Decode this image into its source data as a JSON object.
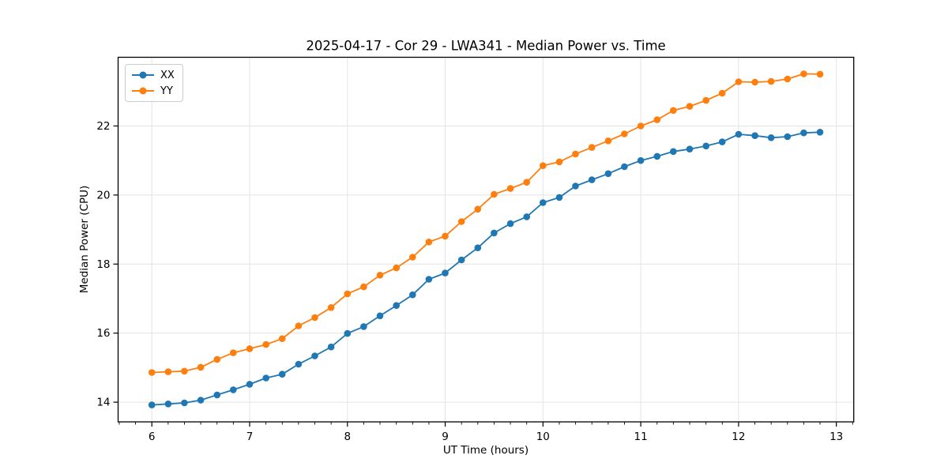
{
  "window": {
    "background": "#ffffff"
  },
  "chart_data": {
    "type": "line",
    "title": "2025-04-17 - Cor 29 - LWA341 - Median Power vs. Time",
    "xlabel": "UT Time (hours)",
    "ylabel": "Median Power (CPU)",
    "xlim": [
      5.655,
      13.178
    ],
    "ylim": [
      13.43,
      23.99
    ],
    "xticks": [
      6,
      7,
      8,
      9,
      10,
      11,
      12,
      13
    ],
    "xtick_labels": [
      "6",
      "7",
      "8",
      "9",
      "10",
      "11",
      "12",
      "13"
    ],
    "yticks": [
      14,
      16,
      18,
      20,
      22
    ],
    "ytick_labels": [
      "14",
      "16",
      "18",
      "20",
      "22"
    ],
    "x_minor_step": 0.166667,
    "grid": true,
    "grid_color": "#e3e3e3",
    "axis_color": "#000000",
    "legend_position": "upper-left",
    "x": [
      6.0,
      6.167,
      6.333,
      6.5,
      6.667,
      6.833,
      7.0,
      7.167,
      7.333,
      7.5,
      7.667,
      7.833,
      8.0,
      8.167,
      8.333,
      8.5,
      8.667,
      8.833,
      9.0,
      9.167,
      9.333,
      9.5,
      9.667,
      9.833,
      10.0,
      10.167,
      10.333,
      10.5,
      10.667,
      10.833,
      11.0,
      11.167,
      11.333,
      11.5,
      11.667,
      11.833,
      12.0,
      12.167,
      12.333,
      12.5,
      12.667,
      12.833
    ],
    "series": [
      {
        "name": "XX",
        "color": "#1f77b4",
        "values": [
          13.92,
          13.95,
          13.98,
          14.06,
          14.21,
          14.36,
          14.52,
          14.7,
          14.81,
          15.1,
          15.34,
          15.6,
          15.99,
          16.19,
          16.5,
          16.8,
          17.11,
          17.56,
          17.74,
          18.12,
          18.47,
          18.9,
          19.17,
          19.37,
          19.78,
          19.93,
          20.26,
          20.44,
          20.62,
          20.82,
          21.0,
          21.12,
          21.26,
          21.33,
          21.42,
          21.54,
          21.76,
          21.72,
          21.66,
          21.69,
          21.8,
          21.82
        ]
      },
      {
        "name": "YY",
        "color": "#ff7f0e",
        "values": [
          14.86,
          14.88,
          14.9,
          15.01,
          15.24,
          15.43,
          15.55,
          15.67,
          15.84,
          16.21,
          16.45,
          16.74,
          17.14,
          17.34,
          17.68,
          17.89,
          18.2,
          18.64,
          18.81,
          19.23,
          19.59,
          20.02,
          20.19,
          20.37,
          20.85,
          20.96,
          21.19,
          21.38,
          21.57,
          21.77,
          22.0,
          22.18,
          22.45,
          22.57,
          22.74,
          22.95,
          23.28,
          23.27,
          23.29,
          23.36,
          23.51,
          23.5
        ]
      }
    ]
  }
}
